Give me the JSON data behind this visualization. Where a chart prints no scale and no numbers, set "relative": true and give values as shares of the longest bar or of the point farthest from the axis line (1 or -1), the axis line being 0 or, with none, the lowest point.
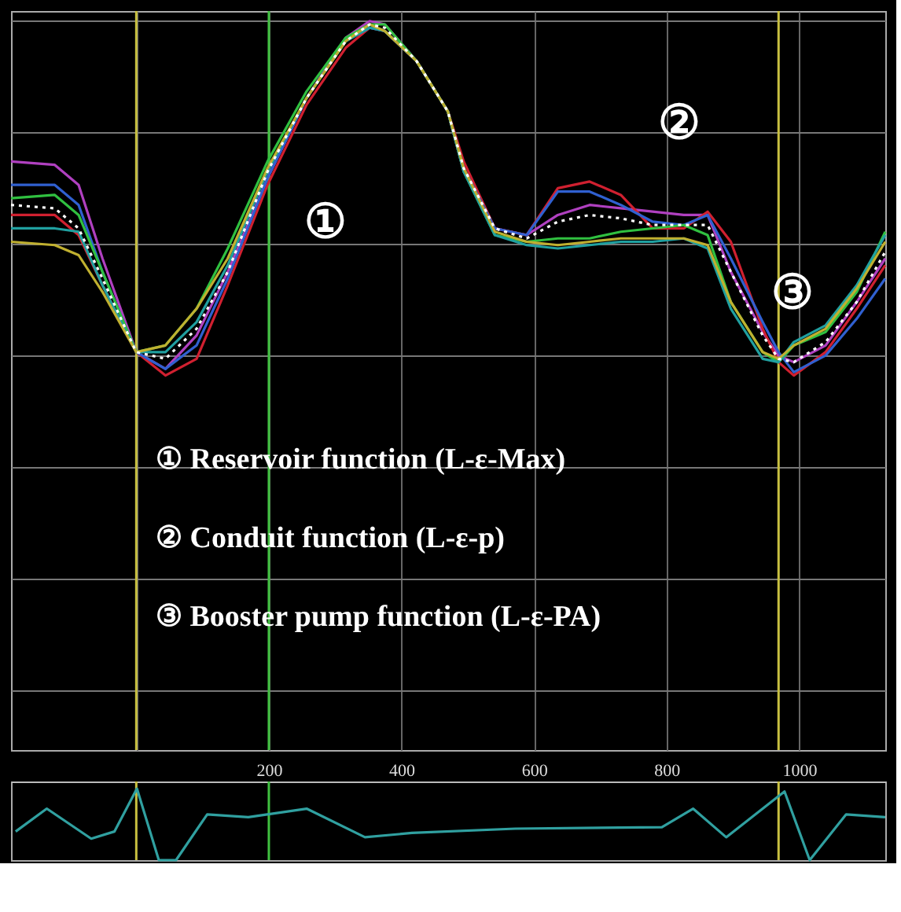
{
  "chart_data": [
    {
      "type": "line",
      "relative": true,
      "x": [
        -189,
        -123,
        -87,
        -51,
        0,
        44,
        91,
        138,
        198,
        257,
        316,
        352,
        375,
        423,
        470,
        494,
        541,
        589,
        636,
        684,
        731,
        779,
        826,
        862,
        897,
        945,
        969,
        992,
        1040,
        1087,
        1130
      ],
      "xlim": [
        -189,
        1130
      ],
      "grid": true,
      "marker": "none",
      "series": [
        {
          "color": "#b040c0",
          "values": [
            0.58,
            0.57,
            0.51,
            0.29,
            0.01,
            -0.04,
            0.06,
            0.25,
            0.53,
            0.77,
            0.95,
            1.0,
            0.99,
            0.88,
            0.73,
            0.55,
            0.38,
            0.36,
            0.42,
            0.45,
            0.44,
            0.43,
            0.42,
            0.42,
            0.25,
            0.07,
            0,
            -0.02,
            0.03,
            0.16,
            0.29
          ]
        },
        {
          "color": "#d02030",
          "values": [
            0.42,
            0.42,
            0.36,
            0.21,
            0.01,
            -0.06,
            -0.01,
            0.21,
            0.51,
            0.75,
            0.92,
            0.98,
            0.97,
            0.88,
            0.73,
            0.58,
            0.38,
            0.36,
            0.5,
            0.52,
            0.48,
            0.38,
            0.38,
            0.43,
            0.34,
            0.08,
            -0.02,
            -0.06,
            0.01,
            0.14,
            0.27
          ]
        },
        {
          "color": "#3060d0",
          "values": [
            0.51,
            0.51,
            0.45,
            0.25,
            0.01,
            -0.04,
            0.03,
            0.23,
            0.53,
            0.77,
            0.94,
            0.98,
            0.97,
            0.88,
            0.73,
            0.56,
            0.38,
            0.36,
            0.49,
            0.49,
            0.45,
            0.4,
            0.39,
            0.42,
            0.29,
            0.1,
            0.01,
            -0.05,
            0,
            0.11,
            0.23
          ]
        },
        {
          "color": "#30c040",
          "values": [
            0.47,
            0.48,
            0.42,
            0.25,
            0.01,
            0.03,
            0.14,
            0.32,
            0.58,
            0.79,
            0.95,
            0.99,
            0.99,
            0.88,
            0.73,
            0.55,
            0.36,
            0.34,
            0.35,
            0.35,
            0.37,
            0.38,
            0.39,
            0.36,
            0.16,
            0.01,
            -0.02,
            0.03,
            0.07,
            0.19,
            0.37
          ]
        },
        {
          "color": "#20a0a0",
          "values": [
            0.38,
            0.38,
            0.37,
            0.21,
            0.01,
            0.01,
            0.1,
            0.27,
            0.55,
            0.77,
            0.94,
            0.98,
            0.97,
            0.88,
            0.73,
            0.55,
            0.36,
            0.33,
            0.32,
            0.33,
            0.34,
            0.34,
            0.35,
            0.32,
            0.14,
            -0.01,
            -0.02,
            0.04,
            0.09,
            0.21,
            0.36
          ]
        },
        {
          "color": "#c0b030",
          "values": [
            0.34,
            0.33,
            0.3,
            0.19,
            0.01,
            0.03,
            0.14,
            0.29,
            0.56,
            0.77,
            0.94,
            0.99,
            0.97,
            0.88,
            0.73,
            0.56,
            0.37,
            0.34,
            0.33,
            0.34,
            0.35,
            0.35,
            0.35,
            0.33,
            0.16,
            0.01,
            -0.01,
            0.03,
            0.08,
            0.2,
            0.34
          ]
        },
        {
          "color": "#ffffff",
          "line_style": "dotted",
          "values": [
            0.45,
            0.44,
            0.38,
            0.23,
            0.01,
            -0.01,
            0.08,
            0.25,
            0.55,
            0.77,
            0.94,
            0.99,
            0.98,
            0.88,
            0.73,
            0.56,
            0.38,
            0.35,
            0.4,
            0.42,
            0.41,
            0.39,
            0.39,
            0.39,
            0.25,
            0.06,
            -0.01,
            -0.02,
            0.04,
            0.16,
            0.31
          ]
        }
      ],
      "ref_lines": [
        {
          "axis": "x",
          "value": 0,
          "color": "#c8c040"
        },
        {
          "axis": "x",
          "value": 200,
          "color": "#40c040"
        },
        {
          "axis": "x",
          "value": 969,
          "color": "#c8c040"
        }
      ],
      "annotations": [
        "①",
        "②",
        "③",
        "① Reservoir function (L-ε-Max)",
        "② Conduit function (L-ε-p)",
        "③ Booster pump function (L-ε-PA)"
      ]
    },
    {
      "type": "line",
      "relative": true,
      "x": [
        -182,
        -135,
        -68,
        -33,
        1,
        34,
        60,
        107,
        169,
        257,
        345,
        416,
        572,
        793,
        840,
        890,
        978,
        1016,
        1071,
        1130
      ],
      "values": [
        0.4,
        0.72,
        0.3,
        0.4,
        1,
        0,
        0,
        0.64,
        0.6,
        0.72,
        0.32,
        0.38,
        0.44,
        0.46,
        0.72,
        0.32,
        0.96,
        0,
        0.64,
        0.6
      ],
      "color": "#30a0a0",
      "xlim": [
        -189,
        1130
      ],
      "xticks": [
        200,
        400,
        600,
        800,
        1000
      ],
      "grid": false,
      "marker": "none",
      "ref_lines": [
        {
          "axis": "x",
          "value": 0,
          "color": "#c8c040"
        },
        {
          "axis": "x",
          "value": 200,
          "color": "#40c040"
        },
        {
          "axis": "x",
          "value": 969,
          "color": "#c8c040"
        }
      ]
    }
  ]
}
